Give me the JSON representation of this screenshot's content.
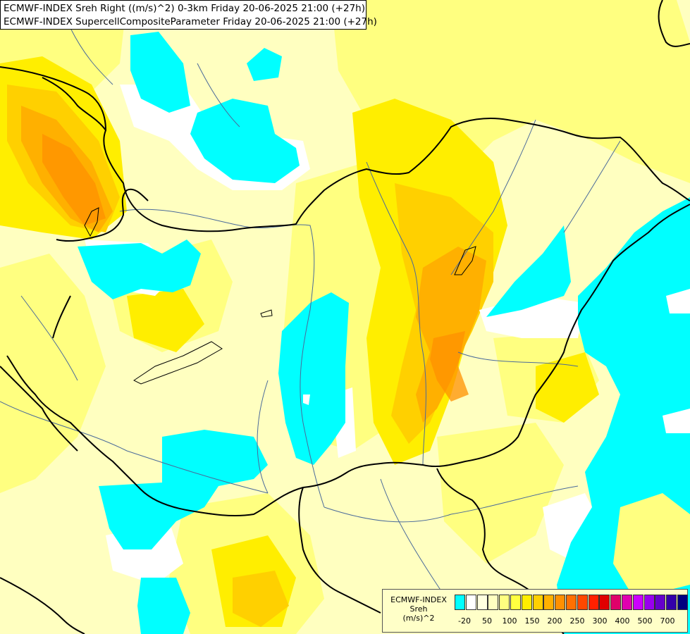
{
  "title": {
    "line1": "ECMWF-INDEX Sreh Right ((m/s)^2) 0-3km Friday 20-06-2025 21:00 (+27h)",
    "line2": "ECMWF-INDEX SupercellCompositeParameter Friday 20-06-2025 21:00 (+27h)"
  },
  "legend": {
    "model": "ECMWF-INDEX",
    "parameter": "Sreh",
    "unit": "(m/s)^2",
    "colors": [
      "#00ffff",
      "#ffffff",
      "#ffffe0",
      "#ffffc0",
      "#ffff80",
      "#ffff40",
      "#ffee00",
      "#ffd000",
      "#ffb000",
      "#ff9000",
      "#ff7000",
      "#ff4800",
      "#ff2000",
      "#e00000",
      "#e0006a",
      "#e000b0",
      "#cc00ff",
      "#9900ee",
      "#6600cc",
      "#3300aa",
      "#000080"
    ],
    "tick_labels": [
      "-20",
      "50",
      "100",
      "150",
      "200",
      "250",
      "300",
      "400",
      "500",
      "700"
    ]
  },
  "colors": {
    "background": "#ffffc0",
    "light_yellow": "#ffff80",
    "yellow": "#ffee00",
    "gold": "#ffd000",
    "orange": "#ffb000",
    "dark_orange": "#ff9000",
    "cyan": "#00ffff",
    "white": "#ffffff",
    "border": "#000000",
    "river": "#4a6a9a"
  }
}
